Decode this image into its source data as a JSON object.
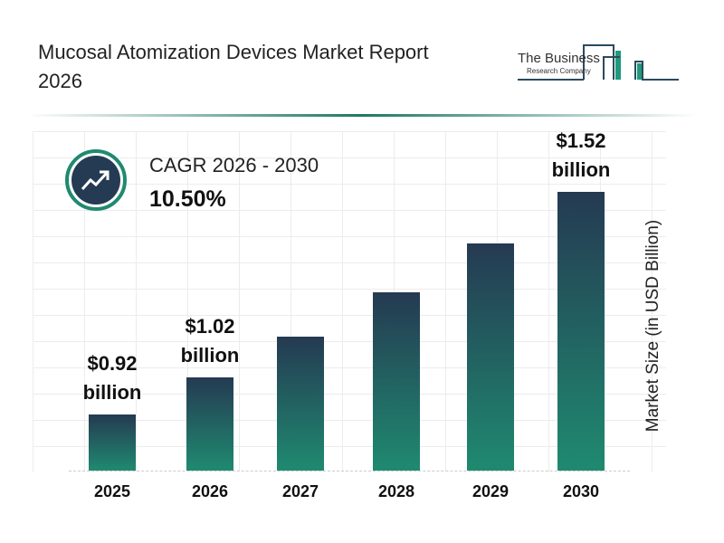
{
  "title": "Mucosal Atomization Devices Market Report 2026",
  "logo": {
    "line1": "The Business",
    "line2": "Research Company"
  },
  "cagr": {
    "label": "CAGR 2026 - 2030",
    "value": "10.50%",
    "icon": "trending-up-icon"
  },
  "chart_data": {
    "type": "bar",
    "categories": [
      "2025",
      "2026",
      "2027",
      "2028",
      "2029",
      "2030"
    ],
    "values": [
      0.92,
      1.02,
      1.13,
      1.25,
      1.38,
      1.52
    ],
    "data_labels": [
      "$0.92 billion",
      "$1.02 billion",
      "",
      "",
      "",
      "$1.52 billion"
    ],
    "ylabel": "Market Size (in USD Billion)",
    "grid": true,
    "colors": {
      "top": "#253a52",
      "bottom": "#1f8a70"
    }
  }
}
